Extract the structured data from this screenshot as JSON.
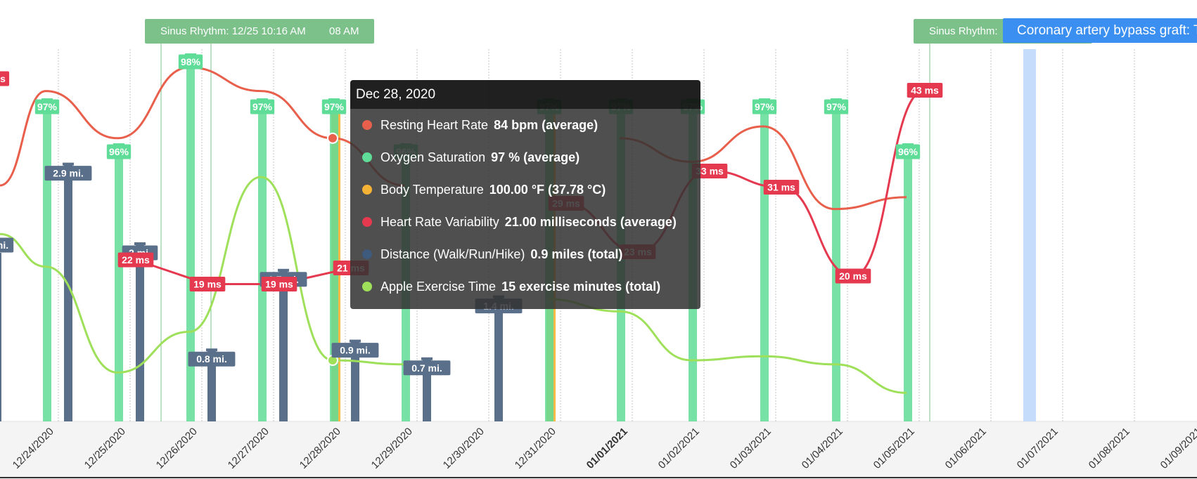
{
  "chart_data": {
    "type": "line",
    "x_dates": [
      "12/24/2020",
      "12/25/2020",
      "12/26/2020",
      "12/27/2020",
      "12/28/2020",
      "12/29/2020",
      "12/30/2020",
      "12/31/2020",
      "01/01/2021",
      "01/02/2021",
      "01/03/2021",
      "01/04/2021",
      "01/05/2021",
      "01/06/2021",
      "01/07/2021",
      "01/08/2021",
      "01/09/2021"
    ],
    "bold_tick": "01/01/2021",
    "series": [
      {
        "name": "Resting Heart Rate",
        "kind": "line",
        "color": "#e8604c",
        "points": [
          [
            "12/24/2020",
            88
          ],
          [
            "12/25/2020",
            84
          ],
          [
            "12/26/2020",
            90
          ],
          [
            "12/27/2020",
            88
          ],
          [
            "12/28/2020",
            84
          ],
          [
            "12/29/2020",
            80
          ],
          [
            "01/01/2021",
            84
          ],
          [
            "01/02/2021",
            82
          ],
          [
            "01/03/2021",
            85
          ],
          [
            "01/04/2021",
            78
          ],
          [
            "01/05/2021",
            79
          ]
        ]
      },
      {
        "name": "Heart Rate Variability",
        "kind": "line",
        "color": "#e53950",
        "labels_suffix": " ms",
        "points": [
          [
            "12/25/2020",
            22
          ],
          [
            "12/26/2020",
            19
          ],
          [
            "12/27/2020",
            19
          ],
          [
            "12/28/2020",
            21
          ],
          [
            "12/31/2020",
            29
          ],
          [
            "01/01/2021",
            23
          ],
          [
            "01/02/2021",
            33
          ],
          [
            "01/03/2021",
            31
          ],
          [
            "01/04/2021",
            20
          ],
          [
            "01/05/2021",
            43
          ]
        ]
      },
      {
        "name": "Apple Exercise Time",
        "kind": "line",
        "color": "#9fe05a",
        "points": [
          [
            "12/24/2020",
            38
          ],
          [
            "12/25/2020",
            12
          ],
          [
            "12/26/2020",
            22
          ],
          [
            "12/27/2020",
            60
          ],
          [
            "12/28/2020",
            15
          ],
          [
            "12/29/2020",
            14
          ],
          [
            "12/31/2020",
            30
          ],
          [
            "01/01/2021",
            27
          ],
          [
            "01/02/2021",
            15
          ],
          [
            "01/03/2021",
            16
          ],
          [
            "01/04/2021",
            14
          ],
          [
            "01/05/2021",
            7
          ]
        ]
      },
      {
        "name": "Oxygen Saturation",
        "kind": "bar",
        "color": "#5fdc97",
        "unit": "%",
        "points": [
          [
            "12/24/2020",
            97
          ],
          [
            "12/25/2020",
            96
          ],
          [
            "12/26/2020",
            98
          ],
          [
            "12/27/2020",
            97
          ],
          [
            "12/28/2020",
            97
          ],
          [
            "12/29/2020",
            96
          ],
          [
            "12/31/2020",
            97
          ],
          [
            "01/01/2021",
            97
          ],
          [
            "01/02/2021",
            97
          ],
          [
            "01/03/2021",
            97
          ],
          [
            "01/04/2021",
            97
          ],
          [
            "01/05/2021",
            96
          ]
        ]
      },
      {
        "name": "Distance (Walk/Run/Hike)",
        "kind": "bar",
        "color": "#596f8a",
        "unit": " mi.",
        "points": [
          [
            "12/24/2020",
            2.9
          ],
          [
            "12/25/2020",
            2
          ],
          [
            "12/26/2020",
            0.8
          ],
          [
            "12/27/2020",
            1.7
          ],
          [
            "12/28/2020",
            0.9
          ],
          [
            "12/29/2020",
            0.7
          ],
          [
            "12/30/2020",
            1.4
          ]
        ]
      },
      {
        "name": "Body Temperature",
        "kind": "bar",
        "color": "#f5b335",
        "points": [
          [
            "12/28/2020",
            100
          ],
          [
            "12/31/2020",
            100
          ]
        ]
      }
    ],
    "edge_labels": {
      "hrv_left": "s",
      "distance_left": "mi."
    },
    "selected_date": "12/28/2020",
    "highlight_band_date": "01/06/2021",
    "grid": true
  },
  "annotations": {
    "rhythm_1": "Sinus Rhythm: 12/25 10:16 AM",
    "rhythm_1_overlap": "08 AM",
    "rhythm_2": "Sinus Rhythm:",
    "procedure": "Coronary artery bypass graft: T"
  },
  "tooltip": {
    "title": "Dec 28, 2020",
    "rows": [
      {
        "color": "#e8604c",
        "label": "Resting Heart Rate",
        "value": "84 bpm (average)"
      },
      {
        "color": "#5fdc97",
        "label": "Oxygen Saturation",
        "value": "97 % (average)"
      },
      {
        "color": "#f5b335",
        "label": "Body Temperature",
        "value": "100.00 °F (37.78 °C)"
      },
      {
        "color": "#e53950",
        "label": "Heart Rate Variability",
        "value": "21.00 milliseconds (average)"
      },
      {
        "color": "#3e5a7c",
        "label": "Distance (Walk/Run/Hike)",
        "value": "0.9 miles (total)"
      },
      {
        "color": "#9fe05a",
        "label": "Apple Exercise Time",
        "value": "15 exercise minutes (total)"
      }
    ]
  }
}
